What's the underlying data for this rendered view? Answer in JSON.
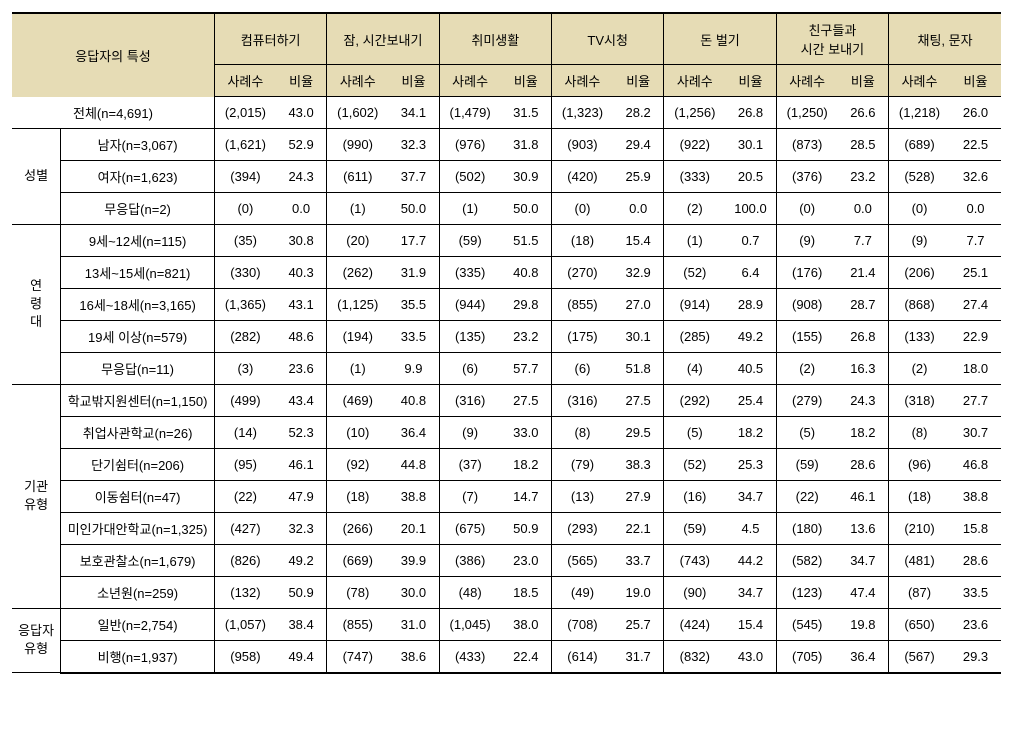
{
  "colors": {
    "header_bg": "#e6dcb5",
    "border": "#000000",
    "background": "#ffffff",
    "text": "#000000"
  },
  "typography": {
    "font_family": "Malgun Gothic",
    "font_size_pt": 10
  },
  "table": {
    "type": "table",
    "row_header_label": "응답자의 특성",
    "metric_groups": [
      "컴퓨터하기",
      "잠, 시간보내기",
      "취미생활",
      "TV시청",
      "돈 벌기",
      "친구들과\n시간 보내기",
      "채팅, 문자"
    ],
    "sub_headers": [
      "사례수",
      "비율"
    ],
    "total_row": {
      "label": "전체(n=4,691)",
      "cells": [
        "(2,015)",
        "43.0",
        "(1,602)",
        "34.1",
        "(1,479)",
        "31.5",
        "(1,323)",
        "28.2",
        "(1,256)",
        "26.8",
        "(1,250)",
        "26.6",
        "(1,218)",
        "26.0"
      ]
    },
    "sections": [
      {
        "group": "성별",
        "rows": [
          {
            "label": "남자(n=3,067)",
            "cells": [
              "(1,621)",
              "52.9",
              "(990)",
              "32.3",
              "(976)",
              "31.8",
              "(903)",
              "29.4",
              "(922)",
              "30.1",
              "(873)",
              "28.5",
              "(689)",
              "22.5"
            ]
          },
          {
            "label": "여자(n=1,623)",
            "cells": [
              "(394)",
              "24.3",
              "(611)",
              "37.7",
              "(502)",
              "30.9",
              "(420)",
              "25.9",
              "(333)",
              "20.5",
              "(376)",
              "23.2",
              "(528)",
              "32.6"
            ]
          },
          {
            "label": "무응답(n=2)",
            "cells": [
              "(0)",
              "0.0",
              "(1)",
              "50.0",
              "(1)",
              "50.0",
              "(0)",
              "0.0",
              "(2)",
              "100.0",
              "(0)",
              "0.0",
              "(0)",
              "0.0"
            ]
          }
        ]
      },
      {
        "group": "연\n령\n대",
        "rows": [
          {
            "label": "9세~12세(n=115)",
            "cells": [
              "(35)",
              "30.8",
              "(20)",
              "17.7",
              "(59)",
              "51.5",
              "(18)",
              "15.4",
              "(1)",
              "0.7",
              "(9)",
              "7.7",
              "(9)",
              "7.7"
            ]
          },
          {
            "label": "13세~15세(n=821)",
            "cells": [
              "(330)",
              "40.3",
              "(262)",
              "31.9",
              "(335)",
              "40.8",
              "(270)",
              "32.9",
              "(52)",
              "6.4",
              "(176)",
              "21.4",
              "(206)",
              "25.1"
            ]
          },
          {
            "label": "16세~18세(n=3,165)",
            "cells": [
              "(1,365)",
              "43.1",
              "(1,125)",
              "35.5",
              "(944)",
              "29.8",
              "(855)",
              "27.0",
              "(914)",
              "28.9",
              "(908)",
              "28.7",
              "(868)",
              "27.4"
            ]
          },
          {
            "label": "19세 이상(n=579)",
            "cells": [
              "(282)",
              "48.6",
              "(194)",
              "33.5",
              "(135)",
              "23.2",
              "(175)",
              "30.1",
              "(285)",
              "49.2",
              "(155)",
              "26.8",
              "(133)",
              "22.9"
            ]
          },
          {
            "label": "무응답(n=11)",
            "cells": [
              "(3)",
              "23.6",
              "(1)",
              "9.9",
              "(6)",
              "57.7",
              "(6)",
              "51.8",
              "(4)",
              "40.5",
              "(2)",
              "16.3",
              "(2)",
              "18.0"
            ]
          }
        ]
      },
      {
        "group": "기관\n유형",
        "rows": [
          {
            "label": "학교밖지원센터(n=1,150)",
            "cells": [
              "(499)",
              "43.4",
              "(469)",
              "40.8",
              "(316)",
              "27.5",
              "(316)",
              "27.5",
              "(292)",
              "25.4",
              "(279)",
              "24.3",
              "(318)",
              "27.7"
            ]
          },
          {
            "label": "취업사관학교(n=26)",
            "cells": [
              "(14)",
              "52.3",
              "(10)",
              "36.4",
              "(9)",
              "33.0",
              "(8)",
              "29.5",
              "(5)",
              "18.2",
              "(5)",
              "18.2",
              "(8)",
              "30.7"
            ]
          },
          {
            "label": "단기쉼터(n=206)",
            "cells": [
              "(95)",
              "46.1",
              "(92)",
              "44.8",
              "(37)",
              "18.2",
              "(79)",
              "38.3",
              "(52)",
              "25.3",
              "(59)",
              "28.6",
              "(96)",
              "46.8"
            ]
          },
          {
            "label": "이동쉼터(n=47)",
            "cells": [
              "(22)",
              "47.9",
              "(18)",
              "38.8",
              "(7)",
              "14.7",
              "(13)",
              "27.9",
              "(16)",
              "34.7",
              "(22)",
              "46.1",
              "(18)",
              "38.8"
            ]
          },
          {
            "label": "미인가대안학교(n=1,325)",
            "cells": [
              "(427)",
              "32.3",
              "(266)",
              "20.1",
              "(675)",
              "50.9",
              "(293)",
              "22.1",
              "(59)",
              "4.5",
              "(180)",
              "13.6",
              "(210)",
              "15.8"
            ]
          },
          {
            "label": "보호관찰소(n=1,679)",
            "cells": [
              "(826)",
              "49.2",
              "(669)",
              "39.9",
              "(386)",
              "23.0",
              "(565)",
              "33.7",
              "(743)",
              "44.2",
              "(582)",
              "34.7",
              "(481)",
              "28.6"
            ]
          },
          {
            "label": "소년원(n=259)",
            "cells": [
              "(132)",
              "50.9",
              "(78)",
              "30.0",
              "(48)",
              "18.5",
              "(49)",
              "19.0",
              "(90)",
              "34.7",
              "(123)",
              "47.4",
              "(87)",
              "33.5"
            ]
          }
        ]
      },
      {
        "group": "응답자\n유형",
        "rows": [
          {
            "label": "일반(n=2,754)",
            "cells": [
              "(1,057)",
              "38.4",
              "(855)",
              "31.0",
              "(1,045)",
              "38.0",
              "(708)",
              "25.7",
              "(424)",
              "15.4",
              "(545)",
              "19.8",
              "(650)",
              "23.6"
            ]
          },
          {
            "label": "비행(n=1,937)",
            "cells": [
              "(958)",
              "49.4",
              "(747)",
              "38.6",
              "(433)",
              "22.4",
              "(614)",
              "31.7",
              "(832)",
              "43.0",
              "(705)",
              "36.4",
              "(567)",
              "29.3"
            ]
          }
        ]
      }
    ]
  }
}
